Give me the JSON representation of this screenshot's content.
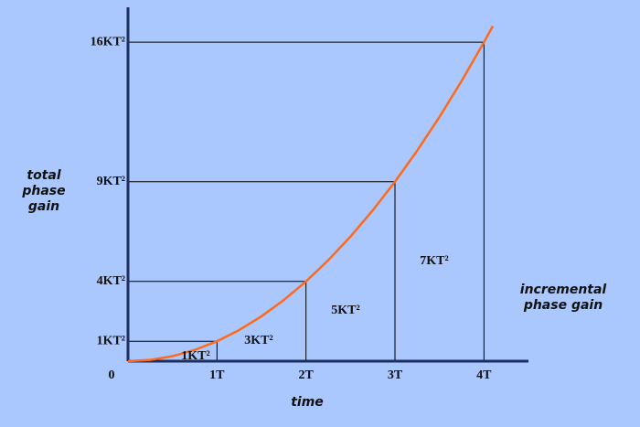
{
  "chart_data": {
    "type": "line",
    "ylabel": [
      "total",
      "phase",
      "gain"
    ],
    "xlabel": "time",
    "side_label": [
      "incremental",
      "phase gain"
    ],
    "annotations": [
      "1KT²",
      "3KT²",
      "5KT²",
      "7KT²"
    ],
    "x": [
      0,
      0.25,
      0.5,
      0.75,
      1,
      1.25,
      1.5,
      1.75,
      2,
      2.25,
      2.5,
      2.75,
      3,
      3.25,
      3.5,
      3.75,
      4,
      4.1
    ],
    "series": [
      {
        "color": "#ff6a1a",
        "values": [
          0,
          0.0625,
          0.25,
          0.5625,
          1,
          1.5625,
          2.25,
          3.0625,
          4,
          5.0625,
          6.25,
          7.5625,
          9,
          10.5625,
          12.25,
          14.0625,
          16,
          16.81
        ]
      }
    ],
    "xlim": [
      0,
      4.5
    ],
    "ylim": [
      0,
      17.75
    ],
    "xticks": [
      0,
      {
        "value": 1,
        "label": "1T"
      },
      {
        "value": 2,
        "label": "2T"
      },
      {
        "value": 3,
        "label": "3T"
      },
      {
        "value": 4,
        "label": "4T"
      }
    ],
    "yticks": [
      {
        "value": 1,
        "label": "1KT²"
      },
      {
        "value": 4,
        "label": "4KT²"
      },
      {
        "value": 9,
        "label": "9KT²"
      },
      {
        "value": 16,
        "label": "16KT²"
      }
    ]
  }
}
